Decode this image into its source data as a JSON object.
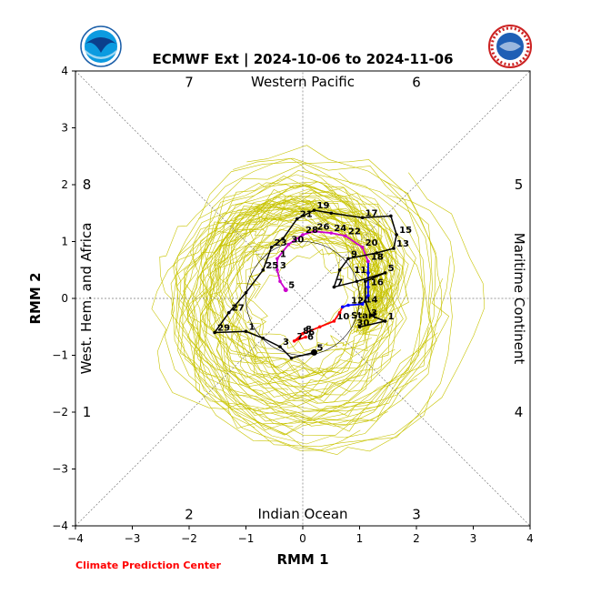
{
  "chart_data": {
    "type": "line",
    "title": "ECMWF Ext | 2024-10-06 to 2024-11-06",
    "xlabel": "RMM 1",
    "ylabel": "RMM 2",
    "xlim": [
      -4,
      4
    ],
    "ylim": [
      -4,
      4
    ],
    "xticks": [
      -4,
      -3,
      -2,
      -1,
      0,
      1,
      2,
      3,
      4
    ],
    "yticks": [
      -4,
      -3,
      -2,
      -1,
      0,
      1,
      2,
      3,
      4
    ],
    "tick_labels": [
      "−4",
      "−3",
      "−2",
      "−1",
      "0",
      "1",
      "2",
      "3",
      "4"
    ],
    "region_labels": {
      "top": "Western Pacific",
      "bottom": "Indian Ocean",
      "left": "West. Hem. and Africa",
      "right": "Maritime Continent"
    },
    "phase_numbers": [
      "1",
      "2",
      "3",
      "4",
      "5",
      "6",
      "7",
      "8"
    ],
    "colors": {
      "ensemble": "#c8c400",
      "observed_1": "#ff0000",
      "observed_2": "#0000ff",
      "observed_3": "#cc00cc",
      "forecast_mean": "#000000",
      "footer": "#ff0000"
    },
    "series": [
      {
        "name": "observed_segment_1",
        "color": "#ff0000",
        "points": [
          {
            "label": "6",
            "x": 0.05,
            "y": -0.68
          },
          {
            "label": "7",
            "x": -0.15,
            "y": -0.75
          },
          {
            "label": "8",
            "x": 0.0,
            "y": -0.62
          },
          {
            "label": "",
            "x": 0.3,
            "y": -0.5
          },
          {
            "label": "10",
            "x": 0.55,
            "y": -0.4
          },
          {
            "label": "",
            "x": 0.65,
            "y": -0.25
          },
          {
            "label": "",
            "x": 0.7,
            "y": -0.15
          }
        ]
      },
      {
        "name": "observed_segment_2",
        "color": "#0000ff",
        "points": [
          {
            "label": "",
            "x": 0.7,
            "y": -0.15
          },
          {
            "label": "12",
            "x": 0.8,
            "y": -0.12
          },
          {
            "label": "14",
            "x": 1.05,
            "y": -0.1
          },
          {
            "label": "",
            "x": 1.15,
            "y": 0.05
          },
          {
            "label": "16",
            "x": 1.15,
            "y": 0.2
          },
          {
            "label": "",
            "x": 1.15,
            "y": 0.45
          },
          {
            "label": "18",
            "x": 1.15,
            "y": 0.65
          }
        ]
      },
      {
        "name": "observed_segment_3",
        "color": "#cc00cc",
        "points": [
          {
            "label": "18",
            "x": 1.15,
            "y": 0.65
          },
          {
            "label": "20",
            "x": 1.05,
            "y": 0.9
          },
          {
            "label": "22",
            "x": 0.75,
            "y": 1.1
          },
          {
            "label": "24",
            "x": 0.5,
            "y": 1.15
          },
          {
            "label": "26",
            "x": 0.2,
            "y": 1.18
          },
          {
            "label": "28",
            "x": 0.0,
            "y": 1.12
          },
          {
            "label": "30",
            "x": -0.25,
            "y": 0.95
          },
          {
            "label": "1",
            "x": -0.45,
            "y": 0.7
          },
          {
            "label": "3",
            "x": -0.45,
            "y": 0.5
          },
          {
            "label": "",
            "x": -0.4,
            "y": 0.3
          },
          {
            "label": "5",
            "x": -0.3,
            "y": 0.15
          }
        ]
      },
      {
        "name": "forecast_mean_1",
        "color": "#000000",
        "points": [
          {
            "label": "START",
            "x": 1.0,
            "y": -0.5
          },
          {
            "label": "1",
            "x": 1.45,
            "y": -0.4
          },
          {
            "label": "",
            "x": 1.2,
            "y": -0.3
          },
          {
            "label": "",
            "x": 1.1,
            "y": -0.05
          },
          {
            "label": "",
            "x": 1.1,
            "y": 0.3
          },
          {
            "label": "5",
            "x": 1.45,
            "y": 0.45
          },
          {
            "label": "",
            "x": 0.95,
            "y": 0.3
          },
          {
            "label": "7",
            "x": 0.55,
            "y": 0.2
          },
          {
            "label": "",
            "x": 0.65,
            "y": 0.5
          },
          {
            "label": "9",
            "x": 0.8,
            "y": 0.7
          },
          {
            "label": "",
            "x": 1.3,
            "y": 0.8
          },
          {
            "label": "13",
            "x": 1.6,
            "y": 0.88
          },
          {
            "label": "15",
            "x": 1.65,
            "y": 1.12
          },
          {
            "label": "",
            "x": 1.55,
            "y": 1.45
          },
          {
            "label": "17",
            "x": 1.05,
            "y": 1.42
          },
          {
            "label": "",
            "x": 0.5,
            "y": 1.5
          },
          {
            "label": "19",
            "x": 0.2,
            "y": 1.55
          },
          {
            "label": "21",
            "x": -0.1,
            "y": 1.4
          },
          {
            "label": "",
            "x": -0.35,
            "y": 1.05
          },
          {
            "label": "23",
            "x": -0.55,
            "y": 0.9
          },
          {
            "label": "25",
            "x": -0.7,
            "y": 0.5
          },
          {
            "label": "",
            "x": -1.0,
            "y": 0.1
          },
          {
            "label": "27",
            "x": -1.3,
            "y": -0.25
          },
          {
            "label": "29",
            "x": -1.55,
            "y": -0.6
          },
          {
            "label": "1",
            "x": -1.0,
            "y": -0.58
          },
          {
            "label": "",
            "x": -0.7,
            "y": -0.7
          },
          {
            "label": "3",
            "x": -0.4,
            "y": -0.85
          },
          {
            "label": "",
            "x": -0.2,
            "y": -1.05
          },
          {
            "label": "5",
            "x": 0.2,
            "y": -0.95
          }
        ]
      }
    ],
    "inline_labels": [
      {
        "text": "6",
        "x": 0.08,
        "y": -0.73,
        "color": "#000000"
      },
      {
        "text": "8",
        "x": 0.0,
        "y": -0.62,
        "color": "#000000"
      },
      {
        "text": "11",
        "x": 0.9,
        "y": 0.45,
        "color": "#000000"
      },
      {
        "text": "Start",
        "x": 0.85,
        "y": -0.35,
        "color": "#000000"
      },
      {
        "text": "30",
        "x": 0.95,
        "y": -0.48,
        "color": "#000000"
      },
      {
        "text": "3",
        "x": 1.2,
        "y": -0.3,
        "color": "#000000"
      }
    ]
  },
  "footer": {
    "text": "Climate Prediction Center"
  },
  "logos": {
    "left": "noaa-logo",
    "right": "national-weather-service-logo"
  }
}
